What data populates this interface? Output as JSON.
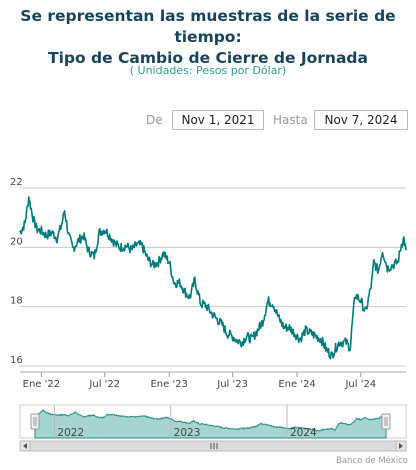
{
  "title_line1": "Se representan las muestras de la serie de tiempo:",
  "title_line2": "Tipo de Cambio de Cierre de Jornada",
  "subtitle": "( Unidades:  Pesos por Dólar)",
  "range": {
    "from_label": "De",
    "from_value": "Nov 1, 2021",
    "to_label": "Hasta",
    "to_value": "Nov 7, 2024"
  },
  "credit": "Banco de México",
  "colors": {
    "series": "#007b7b",
    "navigator_fill": "#a6d4d0",
    "navigator_line": "#2a8a86",
    "title": "#17445c",
    "subtitle": "#2a9d8f"
  },
  "chart_data": {
    "type": "line",
    "title": "Tipo de Cambio de Cierre de Jornada",
    "ylabel": "",
    "xlabel": "",
    "ylim": [
      16,
      22
    ],
    "y_ticks": [
      16,
      18,
      20,
      22
    ],
    "x_ticks": [
      "Ene '22",
      "Jul '22",
      "Ene '23",
      "Jul '23",
      "Ene '24",
      "Jul '24"
    ],
    "x_tick_dates": [
      "2022-01-01",
      "2022-07-01",
      "2023-01-01",
      "2023-07-01",
      "2024-01-01",
      "2024-07-01"
    ],
    "navigator_labels": [
      "2022",
      "2023",
      "2024"
    ],
    "navigator_label_dates": [
      "2022-01-01",
      "2023-01-01",
      "2024-01-01"
    ],
    "grid": true,
    "series": [
      {
        "x": [
          "2021-11-01",
          "2021-11-08",
          "2021-11-15",
          "2021-11-22",
          "2021-11-26",
          "2021-12-01",
          "2021-12-10",
          "2021-12-20",
          "2022-01-01",
          "2022-01-15",
          "2022-02-01",
          "2022-02-15",
          "2022-03-01",
          "2022-03-08",
          "2022-03-20",
          "2022-04-01",
          "2022-04-15",
          "2022-05-01",
          "2022-05-15",
          "2022-06-01",
          "2022-06-15",
          "2022-07-01",
          "2022-07-15",
          "2022-08-01",
          "2022-08-15",
          "2022-09-01",
          "2022-09-15",
          "2022-10-01",
          "2022-10-15",
          "2022-11-01",
          "2022-11-15",
          "2022-12-01",
          "2022-12-15",
          "2023-01-01",
          "2023-01-15",
          "2023-02-01",
          "2023-02-15",
          "2023-03-01",
          "2023-03-15",
          "2023-04-01",
          "2023-04-15",
          "2023-05-01",
          "2023-05-15",
          "2023-06-01",
          "2023-06-15",
          "2023-07-01",
          "2023-07-15",
          "2023-07-28",
          "2023-08-10",
          "2023-08-25",
          "2023-09-10",
          "2023-09-25",
          "2023-10-10",
          "2023-10-25",
          "2023-11-10",
          "2023-11-25",
          "2023-12-10",
          "2023-12-25",
          "2024-01-10",
          "2024-01-25",
          "2024-02-10",
          "2024-02-25",
          "2024-03-10",
          "2024-03-25",
          "2024-04-09",
          "2024-04-20",
          "2024-05-01",
          "2024-05-20",
          "2024-06-01",
          "2024-06-07",
          "2024-06-15",
          "2024-07-01",
          "2024-07-15",
          "2024-08-01",
          "2024-08-07",
          "2024-08-20",
          "2024-09-01",
          "2024-09-15",
          "2024-10-01",
          "2024-10-15",
          "2024-10-25",
          "2024-11-01",
          "2024-11-07"
        ],
        "values": [
          20.5,
          20.65,
          20.8,
          21.35,
          21.7,
          21.4,
          20.9,
          20.6,
          20.55,
          20.4,
          20.5,
          20.3,
          20.8,
          21.25,
          20.4,
          19.95,
          20.2,
          20.4,
          19.9,
          19.7,
          20.5,
          20.6,
          20.4,
          20.1,
          20.0,
          20.05,
          19.9,
          20.1,
          20.05,
          19.6,
          19.4,
          19.5,
          19.8,
          19.5,
          18.8,
          18.8,
          18.5,
          18.3,
          18.9,
          18.1,
          18.05,
          17.8,
          17.6,
          17.4,
          17.1,
          17.0,
          16.85,
          16.8,
          17.0,
          16.9,
          17.2,
          17.5,
          18.2,
          18.1,
          17.6,
          17.3,
          17.3,
          17.1,
          16.9,
          17.2,
          17.1,
          17.0,
          16.9,
          16.55,
          16.35,
          16.6,
          16.8,
          16.8,
          16.6,
          17.5,
          18.4,
          18.2,
          17.8,
          18.8,
          19.5,
          19.2,
          19.9,
          19.3,
          19.4,
          19.5,
          20.1,
          20.3,
          19.9
        ]
      }
    ]
  }
}
